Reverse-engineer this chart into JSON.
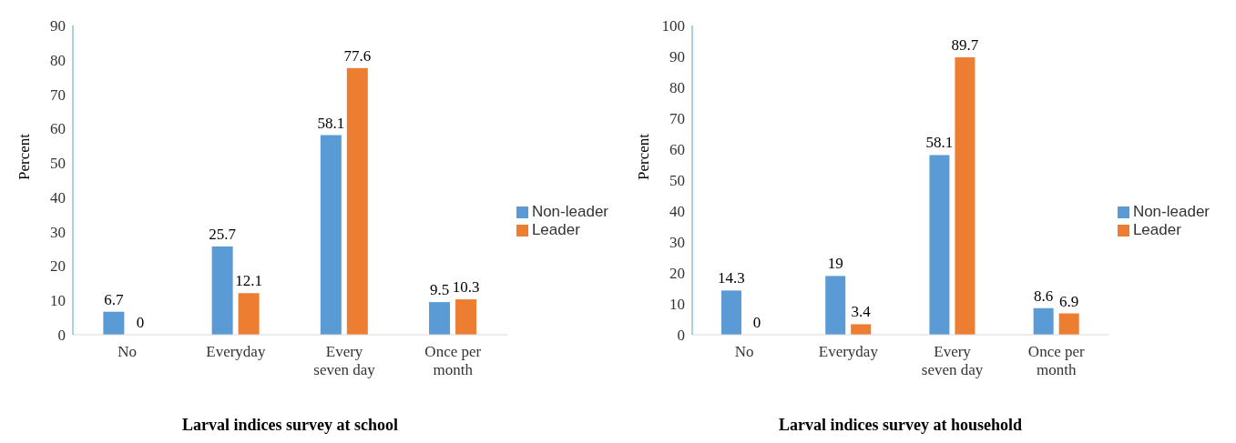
{
  "chart_data": [
    {
      "type": "bar",
      "xlabel": "Larval indices survey at school",
      "ylabel": "Percent",
      "categories": [
        "No",
        "Everyday",
        "Every seven day",
        "Once per month"
      ],
      "series": [
        {
          "name": "Non-leader",
          "color": "#5b9bd5",
          "values": [
            6.7,
            25.7,
            58.1,
            9.5
          ]
        },
        {
          "name": "Leader",
          "color": "#ed7d31",
          "values": [
            0,
            12.1,
            77.6,
            10.3
          ]
        }
      ],
      "ylim": [
        0,
        90
      ],
      "yticks": [
        0,
        10,
        20,
        30,
        40,
        50,
        60,
        70,
        80,
        90
      ],
      "grid": false,
      "legend": "right",
      "data_labels": true
    },
    {
      "type": "bar",
      "xlabel": "Larval indices survey at household",
      "ylabel": "Percent",
      "categories": [
        "No",
        "Everyday",
        "Every seven day",
        "Once per month"
      ],
      "series": [
        {
          "name": "Non-leader",
          "color": "#5b9bd5",
          "values": [
            14.3,
            19,
            58.1,
            8.6
          ]
        },
        {
          "name": "Leader",
          "color": "#ed7d31",
          "values": [
            0,
            3.4,
            89.7,
            6.9
          ]
        }
      ],
      "ylim": [
        0,
        100
      ],
      "yticks": [
        0,
        10,
        20,
        30,
        40,
        50,
        60,
        70,
        80,
        90,
        100
      ],
      "grid": false,
      "legend": "right",
      "data_labels": true
    }
  ]
}
